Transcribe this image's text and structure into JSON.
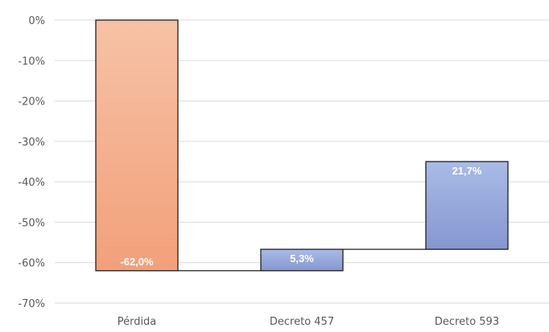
{
  "chart_data": {
    "type": "bar",
    "subtype": "waterfall",
    "title": "",
    "xlabel": "",
    "ylabel": "",
    "categories": [
      "Pérdida",
      "Decreto 457",
      "Decreto 593"
    ],
    "bars": [
      {
        "name": "Pérdida",
        "start": 0,
        "end": -62.0,
        "label": "-62,0%",
        "color": "#f4a882"
      },
      {
        "name": "Decreto 457",
        "start": -62.0,
        "end": -56.7,
        "label": "5,3%",
        "color": "#8fa3d8"
      },
      {
        "name": "Decreto 593",
        "start": -56.7,
        "end": -35.0,
        "label": "21,7%",
        "color": "#8fa3d8"
      }
    ],
    "ylim": [
      -70,
      0
    ],
    "yticks": [
      0,
      -10,
      -20,
      -30,
      -40,
      -50,
      -60,
      -70
    ],
    "ytick_labels": [
      "0%",
      "-10%",
      "-20%",
      "-30%",
      "-40%",
      "-50%",
      "-60%",
      "-70%"
    ],
    "grid": true,
    "legend": "none"
  }
}
